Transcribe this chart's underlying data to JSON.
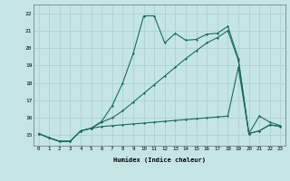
{
  "title": "",
  "xlabel": "Humidex (Indice chaleur)",
  "background_color": "#c5e5e5",
  "grid_color": "#a8cccc",
  "line_color": "#1a6b5a",
  "xlim": [
    -0.5,
    23.5
  ],
  "ylim": [
    14.4,
    22.5
  ],
  "xticks": [
    0,
    1,
    2,
    3,
    4,
    5,
    6,
    7,
    8,
    9,
    10,
    11,
    12,
    13,
    14,
    15,
    16,
    17,
    18,
    19,
    20,
    21,
    22,
    23
  ],
  "yticks": [
    15,
    16,
    17,
    18,
    19,
    20,
    21,
    22
  ],
  "line1_y": [
    15.1,
    14.85,
    14.65,
    14.65,
    15.25,
    15.4,
    15.5,
    15.55,
    15.6,
    15.65,
    15.7,
    15.75,
    15.8,
    15.85,
    15.9,
    15.95,
    16.0,
    16.05,
    16.1,
    18.9,
    15.1,
    15.25,
    15.6,
    15.5
  ],
  "line2_y": [
    15.1,
    14.85,
    14.65,
    14.65,
    15.25,
    15.4,
    15.75,
    16.0,
    16.4,
    16.9,
    17.4,
    17.9,
    18.4,
    18.9,
    19.4,
    19.85,
    20.3,
    20.6,
    21.0,
    19.3,
    15.1,
    15.25,
    15.6,
    15.5
  ],
  "line3_y": [
    15.1,
    14.85,
    14.65,
    14.65,
    15.25,
    15.4,
    15.8,
    16.7,
    18.0,
    19.7,
    21.85,
    21.85,
    20.3,
    20.85,
    20.45,
    20.5,
    20.8,
    20.85,
    21.25,
    19.4,
    15.1,
    16.1,
    15.75,
    15.55
  ]
}
